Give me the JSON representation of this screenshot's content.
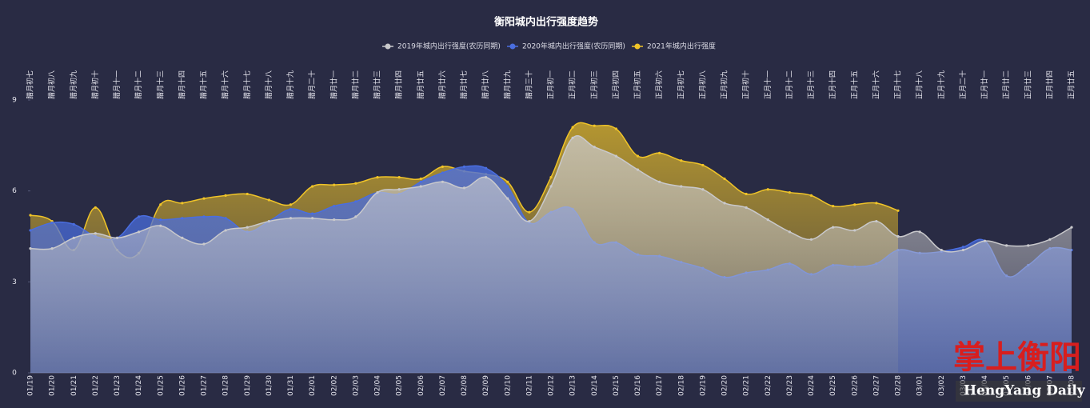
{
  "chart_data": {
    "type": "area",
    "title": "衡阳城内出行强度趋势",
    "categories": [
      "01/19",
      "01/20",
      "01/21",
      "01/22",
      "01/23",
      "01/24",
      "01/25",
      "01/26",
      "01/27",
      "01/28",
      "01/29",
      "01/30",
      "01/31",
      "02/01",
      "02/02",
      "02/03",
      "02/04",
      "02/05",
      "02/06",
      "02/07",
      "02/08",
      "02/09",
      "02/10",
      "02/11",
      "02/12",
      "02/13",
      "02/14",
      "02/15",
      "02/16",
      "02/17",
      "02/18",
      "02/19",
      "02/20",
      "02/21",
      "02/22",
      "02/23",
      "02/24",
      "02/25",
      "02/26",
      "02/27",
      "02/28",
      "03/01",
      "03/02",
      "03/03",
      "03/04",
      "03/05",
      "03/06",
      "03/07",
      "03/08"
    ],
    "top_categories": [
      "腊月初七",
      "腊月初八",
      "腊月初九",
      "腊月初十",
      "腊月十一",
      "腊月十二",
      "腊月十三",
      "腊月十四",
      "腊月十五",
      "腊月十六",
      "腊月十七",
      "腊月十八",
      "腊月十九",
      "腊月二十",
      "腊月廿一",
      "腊月廿二",
      "腊月廿三",
      "腊月廿四",
      "腊月廿五",
      "腊月廿六",
      "腊月廿七",
      "腊月廿八",
      "腊月廿九",
      "腊月三十",
      "正月初一",
      "正月初二",
      "正月初三",
      "正月初四",
      "正月初五",
      "正月初六",
      "正月初七",
      "正月初八",
      "正月初九",
      "正月初十",
      "正月十一",
      "正月十二",
      "正月十三",
      "正月十四",
      "正月十五",
      "正月十六",
      "正月十七",
      "正月十八",
      "正月十九",
      "正月二十",
      "正月廿一",
      "正月廿二",
      "正月廿三",
      "正月廿四",
      "正月廿五"
    ],
    "ylim": [
      0,
      9
    ],
    "yticks": [
      0,
      3,
      6,
      9
    ],
    "series": [
      {
        "name": "2019年城内出行强度(农历同期)",
        "color": "#c9c9cc",
        "values": [
          4.1,
          4.1,
          4.45,
          4.6,
          4.45,
          4.65,
          4.85,
          4.45,
          4.25,
          4.7,
          4.8,
          5.0,
          5.1,
          5.1,
          5.05,
          5.15,
          5.95,
          6.05,
          6.15,
          6.3,
          6.1,
          6.45,
          5.75,
          5.0,
          6.15,
          7.75,
          7.45,
          7.15,
          6.7,
          6.3,
          6.15,
          6.05,
          5.6,
          5.45,
          5.05,
          4.65,
          4.4,
          4.8,
          4.7,
          5.0,
          4.5,
          4.65,
          4.05,
          4.05,
          4.35,
          4.2,
          4.2,
          4.4,
          4.8
        ]
      },
      {
        "name": "2020年城内出行强度(农历同期)",
        "color": "#4a6ee0",
        "values": [
          4.7,
          4.95,
          4.9,
          4.5,
          4.45,
          5.15,
          5.05,
          5.1,
          5.15,
          5.1,
          4.65,
          5.0,
          5.4,
          5.25,
          5.5,
          5.65,
          5.95,
          5.9,
          6.3,
          6.6,
          6.8,
          6.75,
          6.15,
          4.95,
          5.3,
          5.4,
          4.3,
          4.3,
          3.9,
          3.85,
          3.65,
          3.45,
          3.15,
          3.3,
          3.4,
          3.6,
          3.25,
          3.55,
          3.5,
          3.6,
          4.05,
          3.95,
          4.0,
          4.15,
          4.35,
          3.2,
          3.55,
          4.1,
          4.05
        ]
      },
      {
        "name": "2021年城内出行强度",
        "color": "#f0c428",
        "values": [
          5.2,
          5.0,
          4.05,
          5.45,
          4.05,
          3.95,
          5.55,
          5.6,
          5.75,
          5.85,
          5.9,
          5.7,
          5.55,
          6.15,
          6.2,
          6.25,
          6.45,
          6.45,
          6.4,
          6.8,
          6.65,
          6.55,
          6.3,
          5.3,
          6.45,
          8.1,
          8.15,
          8.05,
          7.15,
          7.25,
          7.0,
          6.85,
          6.4,
          5.9,
          6.05,
          5.95,
          5.85,
          5.5,
          5.55,
          5.6,
          5.35,
          null,
          null,
          null,
          null,
          null,
          null,
          null,
          null
        ]
      }
    ]
  },
  "watermark": {
    "title": "掌上衡阳",
    "subtitle": "HengYang Daily"
  }
}
